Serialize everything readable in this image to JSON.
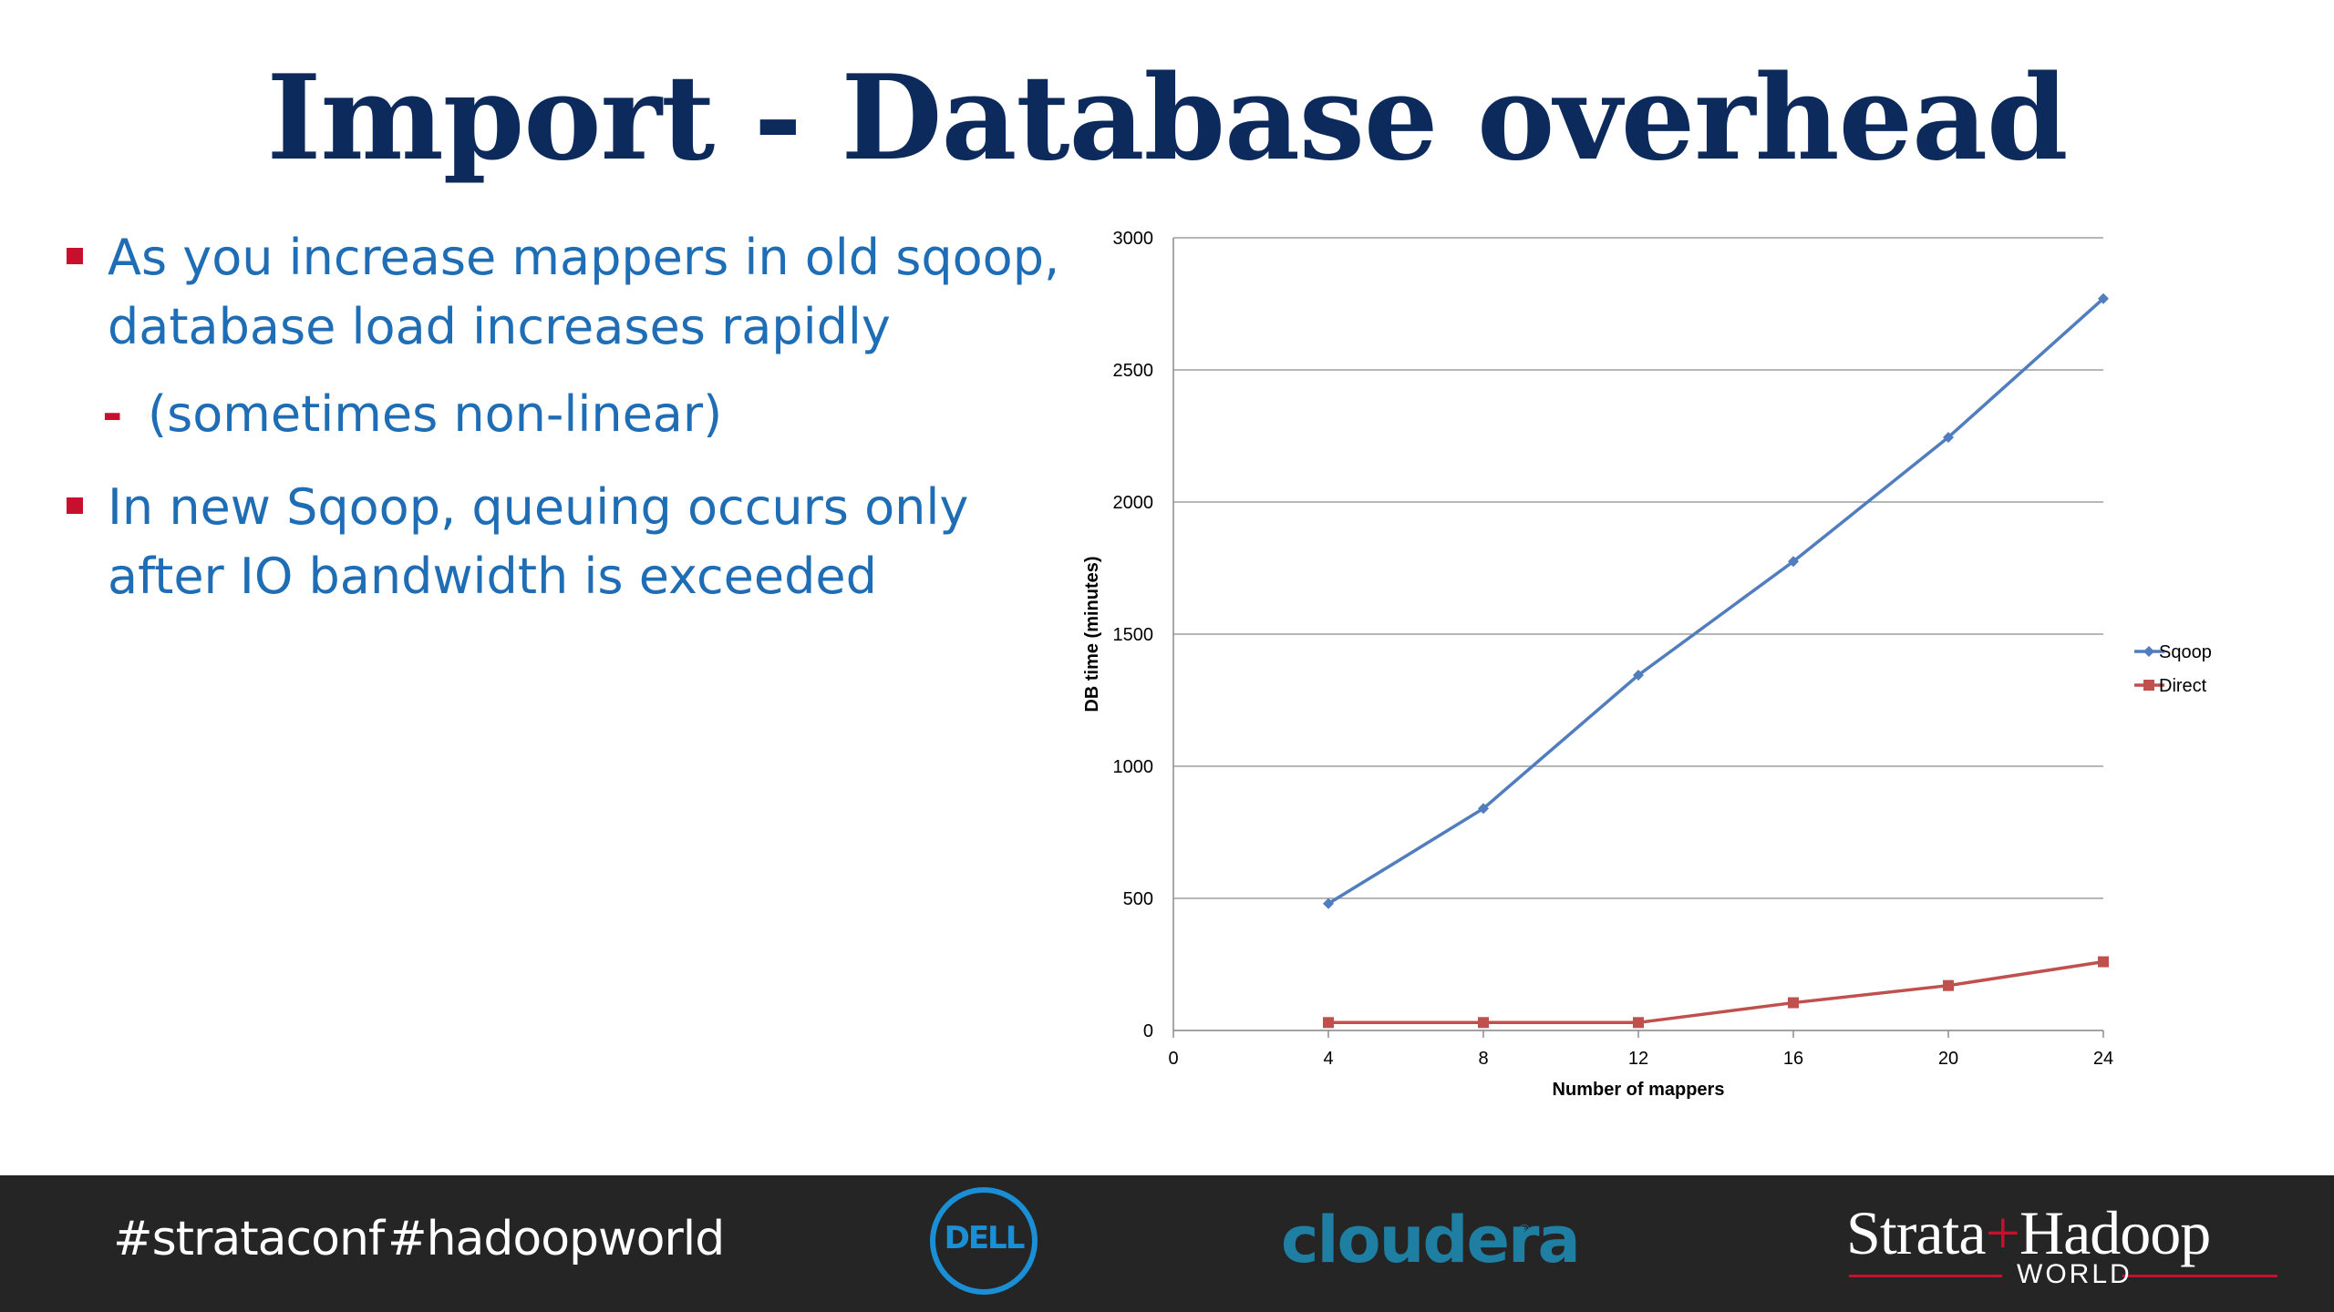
{
  "slide": {
    "title": "Import - Database overhead",
    "bullets": [
      "As you increase mappers in old sqoop, database load increases rapidly",
      "In new Sqoop, queuing occurs only after IO bandwidth is exceeded"
    ],
    "sub_bullet": "(sometimes non-linear)"
  },
  "footer": {
    "hashtag1": "#strataconf",
    "hashtag2": "#hadoopworld",
    "dell_logo": "DELL",
    "cloudera_logo": "cloudera",
    "cloudera_mark": "®",
    "strata_a": "Strata",
    "strata_plus": "+",
    "strata_b": "Hadoop",
    "strata_world": "WORLD",
    "colors": {
      "background": "#252525",
      "dell": "#1a8fd6",
      "cloudera": "#1f7fa3",
      "accent": "#c8102e"
    }
  },
  "chart_data": {
    "type": "line",
    "xlabel": "Number of mappers",
    "ylabel": "DB time (minutes)",
    "x_ticks": [
      0,
      4,
      8,
      12,
      16,
      20,
      24
    ],
    "y_ticks": [
      0,
      500,
      1000,
      1500,
      2000,
      2500,
      3000
    ],
    "xlim": [
      0,
      24
    ],
    "ylim": [
      0,
      3000
    ],
    "grid": "horizontal",
    "legend_position": "right",
    "x": [
      4,
      8,
      12,
      16,
      20,
      24
    ],
    "series": [
      {
        "name": "Sqoop",
        "values": [
          480,
          840,
          1345,
          1775,
          2245,
          2770
        ],
        "color": "#4f7dbd",
        "marker": "diamond"
      },
      {
        "name": "Direct",
        "values": [
          30,
          30,
          30,
          105,
          170,
          260
        ],
        "color": "#c0504d",
        "marker": "square"
      }
    ]
  }
}
